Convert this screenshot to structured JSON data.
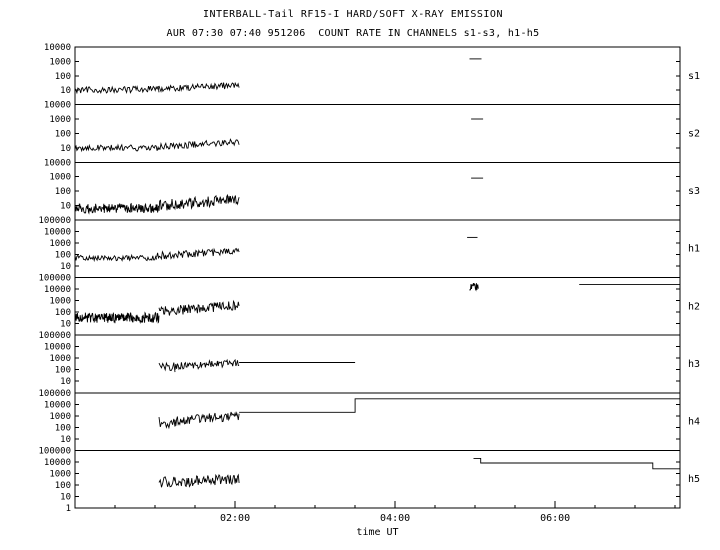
{
  "page": {
    "background": "#ffffff",
    "foreground": "#000000"
  },
  "chart_data": {
    "type": "line",
    "title": "INTERBALL-Tail RF15-I HARD/SOFT X-RAY EMISSION",
    "subtitle": "AUR 07:30 07:40 951206  COUNT RATE IN CHANNELS s1-s3, h1-h5",
    "xlabel": "time UT",
    "x_range_hours": [
      0,
      7.56
    ],
    "x_ticks": [
      {
        "t": 2,
        "label": "02:00"
      },
      {
        "t": 4,
        "label": "04:00"
      },
      {
        "t": 6,
        "label": "06:00"
      }
    ],
    "x_minor_step_hours": 0.5,
    "y_base_label": "1",
    "line_color": "#000000",
    "panels": [
      {
        "label": "s1",
        "ymin": 1,
        "ymax": 10000,
        "y_tick_values": [
          10000,
          1000,
          100,
          10
        ],
        "y_tick_labels": [
          "10000",
          "1000",
          "100",
          "10"
        ],
        "segments": [
          {
            "kind": "noise",
            "t0": 0.0,
            "t1": 1.05,
            "lo0": 6,
            "hi0": 18,
            "lo1": 7,
            "hi1": 20,
            "dt": 0.012
          },
          {
            "kind": "noise",
            "t0": 1.05,
            "t1": 2.05,
            "lo0": 8,
            "hi0": 22,
            "lo1": 13,
            "hi1": 38,
            "dt": 0.012
          },
          {
            "kind": "steps",
            "points": [
              [
                4.93,
                1500
              ],
              [
                5.08,
                1500
              ]
            ]
          }
        ]
      },
      {
        "label": "s2",
        "ymin": 1,
        "ymax": 10000,
        "y_tick_values": [
          10000,
          1000,
          100,
          10
        ],
        "y_tick_labels": [
          "10000",
          "1000",
          "100",
          "10"
        ],
        "segments": [
          {
            "kind": "noise",
            "t0": 0.0,
            "t1": 1.05,
            "lo0": 6,
            "hi0": 16,
            "lo1": 6,
            "hi1": 16,
            "dt": 0.012
          },
          {
            "kind": "noise",
            "t0": 1.05,
            "t1": 2.05,
            "lo0": 7,
            "hi0": 20,
            "lo1": 16,
            "hi1": 45,
            "dt": 0.012
          },
          {
            "kind": "steps",
            "points": [
              [
                4.95,
                1000
              ],
              [
                5.1,
                1000
              ]
            ]
          }
        ]
      },
      {
        "label": "s3",
        "ymin": 1,
        "ymax": 10000,
        "y_tick_values": [
          10000,
          1000,
          100,
          10
        ],
        "y_tick_labels": [
          "10000",
          "1000",
          "100",
          "10"
        ],
        "segments": [
          {
            "kind": "noise",
            "t0": 0.0,
            "t1": 1.05,
            "lo0": 3,
            "hi0": 14,
            "lo1": 3,
            "hi1": 14,
            "dt": 0.006
          },
          {
            "kind": "noise",
            "t0": 1.05,
            "t1": 2.05,
            "lo0": 4,
            "hi0": 25,
            "lo1": 12,
            "hi1": 60,
            "dt": 0.009
          },
          {
            "kind": "steps",
            "points": [
              [
                4.95,
                800
              ],
              [
                5.1,
                800
              ]
            ]
          }
        ]
      },
      {
        "label": "h1",
        "ymin": 1,
        "ymax": 100000,
        "y_tick_values": [
          100000,
          10000,
          1000,
          100,
          10
        ],
        "y_tick_labels": [
          "100000",
          "10000",
          "1000",
          "100",
          "10"
        ],
        "segments": [
          {
            "kind": "noise",
            "t0": 0.0,
            "t1": 1.02,
            "lo0": 28,
            "hi0": 85,
            "lo1": 28,
            "hi1": 85,
            "dt": 0.012
          },
          {
            "kind": "noise",
            "t0": 1.02,
            "t1": 2.05,
            "lo0": 35,
            "hi0": 160,
            "lo1": 90,
            "hi1": 350,
            "dt": 0.012
          },
          {
            "kind": "steps",
            "points": [
              [
                4.9,
                3000
              ],
              [
                5.03,
                3000
              ]
            ]
          }
        ]
      },
      {
        "label": "h2",
        "ymin": 1,
        "ymax": 100000,
        "y_tick_values": [
          100000,
          10000,
          1000,
          100,
          10
        ],
        "y_tick_labels": [
          "100000",
          "10000",
          "1000",
          "100",
          "10"
        ],
        "segments": [
          {
            "kind": "noise",
            "t0": 0.0,
            "t1": 1.05,
            "lo0": 12,
            "hi0": 90,
            "lo1": 12,
            "hi1": 90,
            "dt": 0.005
          },
          {
            "kind": "noise",
            "t0": 1.05,
            "t1": 2.05,
            "lo0": 40,
            "hi0": 300,
            "lo1": 150,
            "hi1": 1000,
            "dt": 0.01
          },
          {
            "kind": "noise",
            "t0": 4.93,
            "t1": 5.04,
            "lo0": 8000,
            "hi0": 35000,
            "lo1": 8000,
            "hi1": 35000,
            "dt": 0.006
          },
          {
            "kind": "steps",
            "points": [
              [
                6.3,
                25000
              ],
              [
                7.56,
                25000
              ]
            ]
          }
        ]
      },
      {
        "label": "h3",
        "ymin": 1,
        "ymax": 100000,
        "y_tick_values": [
          100000,
          10000,
          1000,
          100,
          10
        ],
        "y_tick_labels": [
          "100000",
          "10000",
          "1000",
          "100",
          "10"
        ],
        "segments": [
          {
            "kind": "noise",
            "t0": 1.05,
            "t1": 1.25,
            "lo0": 60,
            "hi0": 500,
            "lo1": 60,
            "hi1": 500,
            "dt": 0.015
          },
          {
            "kind": "noise",
            "t0": 1.25,
            "t1": 2.05,
            "lo0": 90,
            "hi0": 450,
            "lo1": 200,
            "hi1": 750,
            "dt": 0.01
          },
          {
            "kind": "steps",
            "points": [
              [
                2.05,
                420
              ],
              [
                3.5,
                420
              ]
            ]
          }
        ]
      },
      {
        "label": "h4",
        "ymin": 1,
        "ymax": 100000,
        "y_tick_values": [
          100000,
          10000,
          1000,
          100,
          10
        ],
        "y_tick_labels": [
          "100000",
          "10000",
          "1000",
          "100",
          "10"
        ],
        "segments": [
          {
            "kind": "noise",
            "t0": 1.05,
            "t1": 1.25,
            "lo0": 80,
            "hi0": 900,
            "lo1": 80,
            "hi1": 900,
            "dt": 0.015
          },
          {
            "kind": "noise",
            "t0": 1.25,
            "t1": 2.05,
            "lo0": 120,
            "hi0": 900,
            "lo1": 400,
            "hi1": 2600,
            "dt": 0.01
          },
          {
            "kind": "steps",
            "points": [
              [
                2.05,
                2000
              ],
              [
                3.5,
                2000
              ],
              [
                3.5,
                30000
              ],
              [
                7.56,
                30000
              ]
            ]
          }
        ]
      },
      {
        "label": "h5",
        "ymin": 1,
        "ymax": 100000,
        "y_tick_values": [
          100000,
          10000,
          1000,
          100,
          10
        ],
        "y_tick_labels": [
          "100000",
          "10000",
          "1000",
          "100",
          "10"
        ],
        "segments": [
          {
            "kind": "noise",
            "t0": 1.05,
            "t1": 1.25,
            "lo0": 40,
            "hi0": 500,
            "lo1": 40,
            "hi1": 500,
            "dt": 0.015
          },
          {
            "kind": "noise",
            "t0": 1.25,
            "t1": 2.05,
            "lo0": 60,
            "hi0": 500,
            "lo1": 120,
            "hi1": 900,
            "dt": 0.01
          },
          {
            "kind": "steps",
            "points": [
              [
                4.98,
                20000
              ],
              [
                5.07,
                20000
              ],
              [
                5.07,
                8000
              ],
              [
                7.22,
                8000
              ],
              [
                7.22,
                2500
              ],
              [
                7.56,
                2500
              ]
            ]
          }
        ]
      }
    ]
  }
}
